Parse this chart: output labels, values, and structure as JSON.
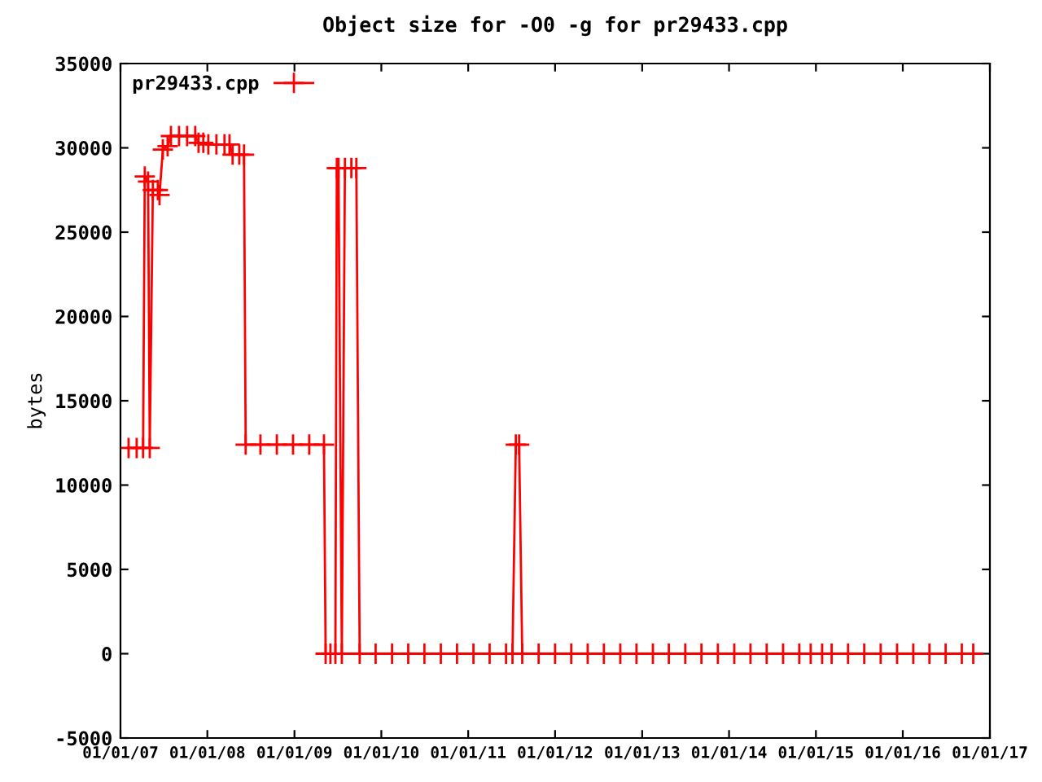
{
  "chart_data": {
    "type": "line",
    "title": "Object size for -O0 -g for pr29433.cpp",
    "ylabel": "bytes",
    "x": [
      "2007-02-04",
      "2007-03-10",
      "2007-04-06",
      "2007-04-13",
      "2007-04-27",
      "2007-05-04",
      "2007-05-17",
      "2007-06-07",
      "2007-06-14",
      "2007-06-28",
      "2007-07-18",
      "2007-08-01",
      "2007-09-04",
      "2007-10-08",
      "2007-11-11",
      "2007-11-25",
      "2007-12-15",
      "2008-01-05",
      "2008-02-08",
      "2008-03-13",
      "2008-04-03",
      "2008-04-16",
      "2008-05-14",
      "2008-06-03",
      "2008-06-10",
      "2008-08-11",
      "2008-10-19",
      "2008-12-26",
      "2009-03-04",
      "2009-05-05",
      "2009-05-12",
      "2009-06-01",
      "2009-06-22",
      "2009-06-28",
      "2009-07-05",
      "2009-07-19",
      "2009-08-01",
      "2009-08-28",
      "2009-09-18",
      "2009-10-02",
      "2009-12-08",
      "2010-02-15",
      "2010-04-24",
      "2010-07-01",
      "2010-09-08",
      "2010-11-15",
      "2011-01-23",
      "2011-04-01",
      "2011-06-09",
      "2011-07-06",
      "2011-07-20",
      "2011-08-03",
      "2011-08-16",
      "2011-10-24",
      "2012-01-01",
      "2012-03-09",
      "2012-05-17",
      "2012-07-24",
      "2012-10-01",
      "2012-12-08",
      "2013-02-15",
      "2013-04-23",
      "2013-07-01",
      "2013-09-07",
      "2013-11-15",
      "2014-01-23",
      "2014-04-01",
      "2014-06-08",
      "2014-08-16",
      "2014-10-23",
      "2014-12-10",
      "2015-01-27",
      "2015-03-08",
      "2015-05-16",
      "2015-07-23",
      "2015-09-30",
      "2015-12-08",
      "2016-02-14",
      "2016-04-22",
      "2016-06-29",
      "2016-09-05",
      "2016-10-23"
    ],
    "series": [
      {
        "name": "pr29433.cpp",
        "color": "#ff0000",
        "values": [
          12200,
          12200,
          12200,
          28300,
          28000,
          12200,
          27500,
          27500,
          27200,
          29900,
          30100,
          30700,
          30700,
          30700,
          30700,
          30300,
          30300,
          30200,
          30200,
          30200,
          30200,
          29600,
          29600,
          29600,
          12400,
          12400,
          12400,
          12400,
          12400,
          12400,
          0,
          0,
          0,
          28800,
          28800,
          0,
          28800,
          28800,
          28800,
          0,
          0,
          0,
          0,
          0,
          0,
          0,
          0,
          0,
          0,
          0,
          12400,
          12400,
          0,
          0,
          0,
          0,
          0,
          0,
          0,
          0,
          0,
          0,
          0,
          0,
          0,
          0,
          0,
          0,
          0,
          0,
          0,
          0,
          0,
          0,
          0,
          0,
          0,
          0,
          0,
          0,
          0,
          0
        ]
      }
    ],
    "xlim": [
      "2007-01-01",
      "2017-01-01"
    ],
    "xticks": [
      {
        "value": "2007-01-01",
        "label": "01/01/07"
      },
      {
        "value": "2008-01-01",
        "label": "01/01/08"
      },
      {
        "value": "2009-01-01",
        "label": "01/01/09"
      },
      {
        "value": "2010-01-01",
        "label": "01/01/10"
      },
      {
        "value": "2011-01-01",
        "label": "01/01/11"
      },
      {
        "value": "2012-01-01",
        "label": "01/01/12"
      },
      {
        "value": "2013-01-01",
        "label": "01/01/13"
      },
      {
        "value": "2014-01-01",
        "label": "01/01/14"
      },
      {
        "value": "2015-01-01",
        "label": "01/01/15"
      },
      {
        "value": "2016-01-01",
        "label": "01/01/16"
      },
      {
        "value": "2017-01-01",
        "label": "01/01/17"
      }
    ],
    "ylim": [
      -5000,
      35000
    ],
    "yticks": [
      -5000,
      0,
      5000,
      10000,
      15000,
      20000,
      25000,
      30000,
      35000
    ],
    "grid": false,
    "legend": "top left",
    "marker": "cross",
    "line_style": "solid"
  }
}
